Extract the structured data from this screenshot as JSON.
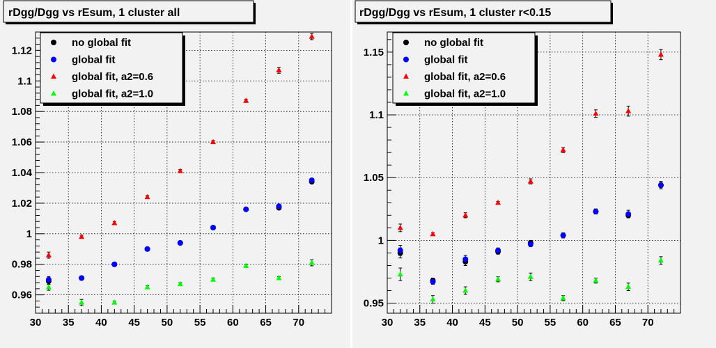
{
  "chart_data": [
    {
      "type": "scatter",
      "title": "rDgg/Dgg vs rEsum, 1 cluster all",
      "xlim": [
        30,
        75
      ],
      "ylim": [
        0.948,
        1.132
      ],
      "x_ticks": [
        30,
        35,
        40,
        45,
        50,
        55,
        60,
        65,
        70
      ],
      "y_ticks": [
        0.96,
        0.98,
        1,
        1.02,
        1.04,
        1.06,
        1.08,
        1.1,
        1.12
      ],
      "y_tick_labels": [
        "0.96",
        "0.98",
        "1",
        "1.02",
        "1.04",
        "1.06",
        "1.08",
        "1.1",
        "1.12"
      ],
      "grid": true,
      "legend_position": "top-left",
      "series": [
        {
          "name": "no global fit",
          "marker": "circle",
          "color": "#000000",
          "x": [
            32,
            37,
            42,
            47,
            52,
            57,
            62,
            67,
            72
          ],
          "y": [
            0.969,
            0.971,
            0.98,
            0.99,
            0.994,
            1.004,
            1.016,
            1.017,
            1.034
          ],
          "err": [
            0.002,
            0.001,
            0.001,
            0.001,
            0.001,
            0.001,
            0.001,
            0.001,
            0.001
          ]
        },
        {
          "name": "global fit",
          "marker": "circle",
          "color": "#0000ff",
          "x": [
            32,
            37,
            42,
            47,
            52,
            57,
            62,
            67,
            72
          ],
          "y": [
            0.97,
            0.971,
            0.98,
            0.99,
            0.994,
            1.004,
            1.016,
            1.018,
            1.035
          ],
          "err": [
            0.002,
            0.001,
            0.001,
            0.001,
            0.001,
            0.001,
            0.001,
            0.001,
            0.001
          ]
        },
        {
          "name": "global fit, a2=0.6",
          "marker": "triangle",
          "color": "#ff0000",
          "x": [
            32,
            37,
            42,
            47,
            52,
            57,
            62,
            67,
            72
          ],
          "y": [
            0.986,
            0.998,
            1.007,
            1.024,
            1.041,
            1.06,
            1.087,
            1.107,
            1.129
          ],
          "err": [
            0.002,
            0.001,
            0.001,
            0.001,
            0.001,
            0.001,
            0.001,
            0.002,
            0.002
          ]
        },
        {
          "name": "global fit, a2=1.0",
          "marker": "triangle",
          "color": "#00ff00",
          "x": [
            32,
            37,
            42,
            47,
            52,
            57,
            62,
            67,
            72
          ],
          "y": [
            0.965,
            0.955,
            0.955,
            0.965,
            0.967,
            0.97,
            0.979,
            0.971,
            0.981
          ],
          "err": [
            0.002,
            0.002,
            0.001,
            0.001,
            0.001,
            0.001,
            0.001,
            0.001,
            0.002
          ]
        }
      ]
    },
    {
      "type": "scatter",
      "title": "rDgg/Dgg vs rEsum, 1 cluster r<0.15",
      "xlim": [
        30,
        75
      ],
      "ylim": [
        0.942,
        1.166
      ],
      "x_ticks": [
        30,
        35,
        40,
        45,
        50,
        55,
        60,
        65,
        70
      ],
      "y_ticks": [
        0.95,
        1,
        1.05,
        1.1,
        1.15
      ],
      "y_tick_labels": [
        "0.95",
        "1",
        "1.05",
        "1.1",
        "1.15"
      ],
      "grid": true,
      "legend_position": "top-left",
      "series": [
        {
          "name": "no global fit",
          "marker": "circle",
          "color": "#000000",
          "x": [
            32,
            37,
            42,
            47,
            52,
            57,
            62,
            67,
            72
          ],
          "y": [
            0.99,
            0.968,
            0.983,
            0.991,
            0.998,
            1.004,
            1.023,
            1.02,
            1.044
          ],
          "err": [
            0.004,
            0.002,
            0.003,
            0.002,
            0.002,
            0.002,
            0.002,
            0.002,
            0.002
          ]
        },
        {
          "name": "global fit",
          "marker": "circle",
          "color": "#0000ff",
          "x": [
            32,
            37,
            42,
            47,
            52,
            57,
            62,
            67,
            72
          ],
          "y": [
            0.992,
            0.967,
            0.985,
            0.992,
            0.997,
            1.004,
            1.023,
            1.021,
            1.044
          ],
          "err": [
            0.004,
            0.002,
            0.003,
            0.002,
            0.002,
            0.002,
            0.002,
            0.003,
            0.003
          ]
        },
        {
          "name": "global fit, a2=0.6",
          "marker": "triangle",
          "color": "#ff0000",
          "x": [
            32,
            37,
            42,
            47,
            52,
            57,
            62,
            67,
            72
          ],
          "y": [
            1.01,
            1.005,
            1.02,
            1.03,
            1.047,
            1.072,
            1.101,
            1.103,
            1.148
          ],
          "err": [
            0.003,
            0.001,
            0.002,
            0.001,
            0.002,
            0.002,
            0.003,
            0.004,
            0.004
          ]
        },
        {
          "name": "global fit, a2=1.0",
          "marker": "triangle",
          "color": "#00ff00",
          "x": [
            32,
            37,
            42,
            47,
            52,
            57,
            62,
            67,
            72
          ],
          "y": [
            0.973,
            0.953,
            0.96,
            0.969,
            0.971,
            0.954,
            0.968,
            0.963,
            0.984
          ],
          "err": [
            0.005,
            0.003,
            0.003,
            0.002,
            0.003,
            0.002,
            0.002,
            0.003,
            0.003
          ]
        }
      ]
    }
  ]
}
